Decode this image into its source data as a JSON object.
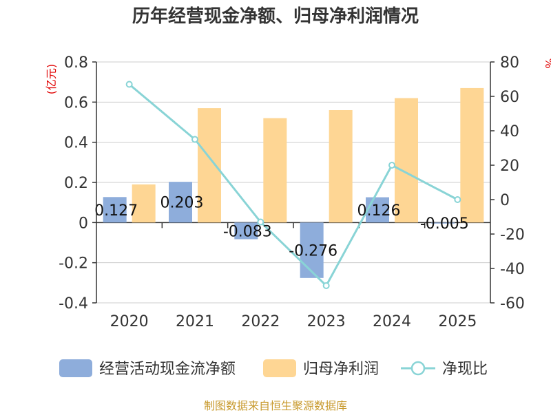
{
  "title": "历年经营现金净额、归母净利润情况",
  "source": "制图数据来自恒生聚源数据库",
  "chart_data": {
    "type": "bar",
    "categories": [
      "2020",
      "2021",
      "2022",
      "2023",
      "2024",
      "2025"
    ],
    "series": [
      {
        "name": "经营活动现金流净额",
        "kind": "bar",
        "axis": "left",
        "color": "#8eaddb",
        "values": [
          0.127,
          0.203,
          -0.083,
          -0.276,
          0.126,
          -0.005
        ],
        "labels": [
          "0.127",
          "0.203",
          "-0.083",
          "-0.276",
          "0.126",
          "-0.005"
        ]
      },
      {
        "name": "归母净利润",
        "kind": "bar",
        "axis": "left",
        "color": "#fed694",
        "values": [
          0.19,
          0.57,
          0.52,
          0.56,
          0.62,
          0.67
        ]
      },
      {
        "name": "净现比",
        "kind": "line",
        "axis": "right",
        "color": "#89d4d6",
        "values": [
          67,
          35,
          -13,
          -50,
          20,
          0
        ]
      }
    ],
    "left_axis": {
      "unit": "(亿元)",
      "ylim": [
        -0.4,
        0.8
      ],
      "ticks": [
        "0.8",
        "0.6",
        "0.4",
        "0.2",
        "0",
        "-0.2",
        "-0.4"
      ],
      "tick_values": [
        0.8,
        0.6,
        0.4,
        0.2,
        0,
        -0.2,
        -0.4
      ]
    },
    "right_axis": {
      "unit": "%",
      "ylim": [
        -60,
        80
      ],
      "ticks": [
        "80",
        "60",
        "40",
        "20",
        "0",
        "-20",
        "-40",
        "-60"
      ],
      "tick_values": [
        80,
        60,
        40,
        20,
        0,
        -20,
        -40,
        -60
      ]
    },
    "legend_position": "bottom",
    "grid": true
  }
}
